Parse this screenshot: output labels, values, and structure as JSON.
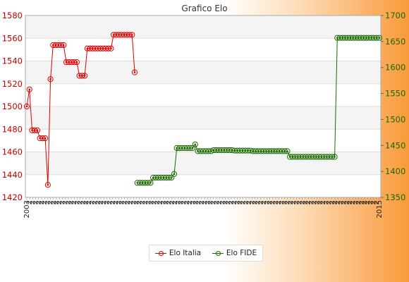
{
  "chart_data": {
    "type": "line",
    "title": "Grafico Elo",
    "left_axis": {
      "ylim": [
        1420,
        1580
      ],
      "ticks": [
        1420,
        1440,
        1460,
        1480,
        1500,
        1520,
        1540,
        1560,
        1580
      ],
      "color": "#c00000"
    },
    "right_axis": {
      "ylim": [
        1350,
        1700
      ],
      "ticks": [
        1350,
        1400,
        1450,
        1500,
        1550,
        1600,
        1650,
        1700
      ],
      "color": "#1a6a00"
    },
    "x_count": 120,
    "x_tick_labels": [
      "2003",
      "2",
      "2",
      "2",
      "2",
      "2",
      "2",
      "2",
      "2",
      "2",
      "2",
      "2",
      "2",
      "2",
      "2",
      "2",
      "2",
      "2",
      "2",
      "2",
      "2",
      "2",
      "2",
      "2",
      "2",
      "2",
      "2",
      "2",
      "2",
      "2",
      "2",
      "2",
      "2",
      "2",
      "2",
      "2",
      "2",
      "2",
      "2",
      "2",
      "2",
      "2",
      "2",
      "2",
      "2",
      "2",
      "2",
      "2",
      "2",
      "2",
      "2",
      "2",
      "2",
      "2",
      "2",
      "2",
      "2",
      "2",
      "2",
      "2",
      "2",
      "2",
      "2",
      "2",
      "2",
      "2",
      "2",
      "2",
      "2",
      "2",
      "2",
      "2",
      "2",
      "2",
      "2",
      "2",
      "2",
      "2",
      "2",
      "2",
      "2",
      "2",
      "2",
      "2",
      "2",
      "2",
      "2",
      "2",
      "2",
      "2",
      "2",
      "2",
      "2",
      "2",
      "2",
      "2",
      "2",
      "2",
      "2",
      "2",
      "2",
      "2",
      "2",
      "2",
      "2",
      "2",
      "2",
      "2",
      "2",
      "2",
      "2",
      "2",
      "2",
      "2",
      "2",
      "2",
      "2",
      "2",
      "2",
      "2015"
    ],
    "grid": true,
    "series": [
      {
        "name": "Elo Italia",
        "axis": "left",
        "color": "#e00000",
        "points": [
          [
            0,
            1500
          ],
          [
            1,
            1515
          ],
          [
            2,
            1479
          ],
          [
            3,
            1479
          ],
          [
            4,
            1479
          ],
          [
            5,
            1472
          ],
          [
            6,
            1472
          ],
          [
            7,
            1472
          ],
          [
            8,
            1431
          ],
          [
            9,
            1524
          ],
          [
            10,
            1554
          ],
          [
            11,
            1554
          ],
          [
            12,
            1554
          ],
          [
            13,
            1554
          ],
          [
            14,
            1554
          ],
          [
            15,
            1539
          ],
          [
            16,
            1539
          ],
          [
            17,
            1539
          ],
          [
            18,
            1539
          ],
          [
            19,
            1539
          ],
          [
            20,
            1527
          ],
          [
            21,
            1527
          ],
          [
            22,
            1527
          ],
          [
            23,
            1551
          ],
          [
            24,
            1551
          ],
          [
            25,
            1551
          ],
          [
            26,
            1551
          ],
          [
            27,
            1551
          ],
          [
            28,
            1551
          ],
          [
            29,
            1551
          ],
          [
            30,
            1551
          ],
          [
            31,
            1551
          ],
          [
            32,
            1551
          ],
          [
            33,
            1563
          ],
          [
            34,
            1563
          ],
          [
            35,
            1563
          ],
          [
            36,
            1563
          ],
          [
            37,
            1563
          ],
          [
            38,
            1563
          ],
          [
            39,
            1563
          ],
          [
            40,
            1563
          ],
          [
            41,
            1530
          ]
        ]
      },
      {
        "name": "Elo FIDE",
        "axis": "right",
        "color": "#1a6a00",
        "points": [
          [
            42,
            1378
          ],
          [
            43,
            1378
          ],
          [
            44,
            1378
          ],
          [
            45,
            1378
          ],
          [
            46,
            1378
          ],
          [
            47,
            1378
          ],
          [
            48,
            1388
          ],
          [
            49,
            1388
          ],
          [
            50,
            1388
          ],
          [
            51,
            1388
          ],
          [
            52,
            1388
          ],
          [
            53,
            1388
          ],
          [
            54,
            1388
          ],
          [
            55,
            1388
          ],
          [
            56,
            1395
          ],
          [
            57,
            1445
          ],
          [
            58,
            1445
          ],
          [
            59,
            1445
          ],
          [
            60,
            1445
          ],
          [
            61,
            1445
          ],
          [
            62,
            1445
          ],
          [
            63,
            1445
          ],
          [
            64,
            1452
          ],
          [
            65,
            1439
          ],
          [
            66,
            1439
          ],
          [
            67,
            1439
          ],
          [
            68,
            1439
          ],
          [
            69,
            1439
          ],
          [
            70,
            1439
          ],
          [
            71,
            1441
          ],
          [
            72,
            1441
          ],
          [
            73,
            1441
          ],
          [
            74,
            1441
          ],
          [
            75,
            1441
          ],
          [
            76,
            1441
          ],
          [
            77,
            1441
          ],
          [
            78,
            1441
          ],
          [
            79,
            1440
          ],
          [
            80,
            1440
          ],
          [
            81,
            1440
          ],
          [
            82,
            1440
          ],
          [
            83,
            1440
          ],
          [
            84,
            1440
          ],
          [
            85,
            1440
          ],
          [
            86,
            1439
          ],
          [
            87,
            1439
          ],
          [
            88,
            1439
          ],
          [
            89,
            1439
          ],
          [
            90,
            1439
          ],
          [
            91,
            1439
          ],
          [
            92,
            1439
          ],
          [
            93,
            1439
          ],
          [
            94,
            1439
          ],
          [
            95,
            1439
          ],
          [
            96,
            1439
          ],
          [
            97,
            1439
          ],
          [
            98,
            1439
          ],
          [
            99,
            1439
          ],
          [
            100,
            1428
          ],
          [
            101,
            1428
          ],
          [
            102,
            1428
          ],
          [
            103,
            1428
          ],
          [
            104,
            1428
          ],
          [
            105,
            1428
          ],
          [
            106,
            1428
          ],
          [
            107,
            1428
          ],
          [
            108,
            1428
          ],
          [
            109,
            1428
          ],
          [
            110,
            1428
          ],
          [
            111,
            1428
          ],
          [
            112,
            1428
          ],
          [
            113,
            1428
          ],
          [
            114,
            1428
          ],
          [
            115,
            1428
          ],
          [
            116,
            1428
          ],
          [
            117,
            1428
          ],
          [
            118,
            1657
          ],
          [
            119,
            1657
          ],
          [
            120,
            1657
          ],
          [
            121,
            1657
          ],
          [
            122,
            1657
          ],
          [
            123,
            1657
          ],
          [
            124,
            1657
          ],
          [
            125,
            1657
          ],
          [
            126,
            1657
          ],
          [
            127,
            1657
          ],
          [
            128,
            1657
          ],
          [
            129,
            1657
          ],
          [
            130,
            1657
          ],
          [
            131,
            1657
          ],
          [
            132,
            1657
          ],
          [
            133,
            1657
          ],
          [
            134,
            1657
          ]
        ]
      }
    ],
    "legend": {
      "position": "bottom-center",
      "entries": [
        "Elo Italia",
        "Elo FIDE"
      ]
    }
  }
}
